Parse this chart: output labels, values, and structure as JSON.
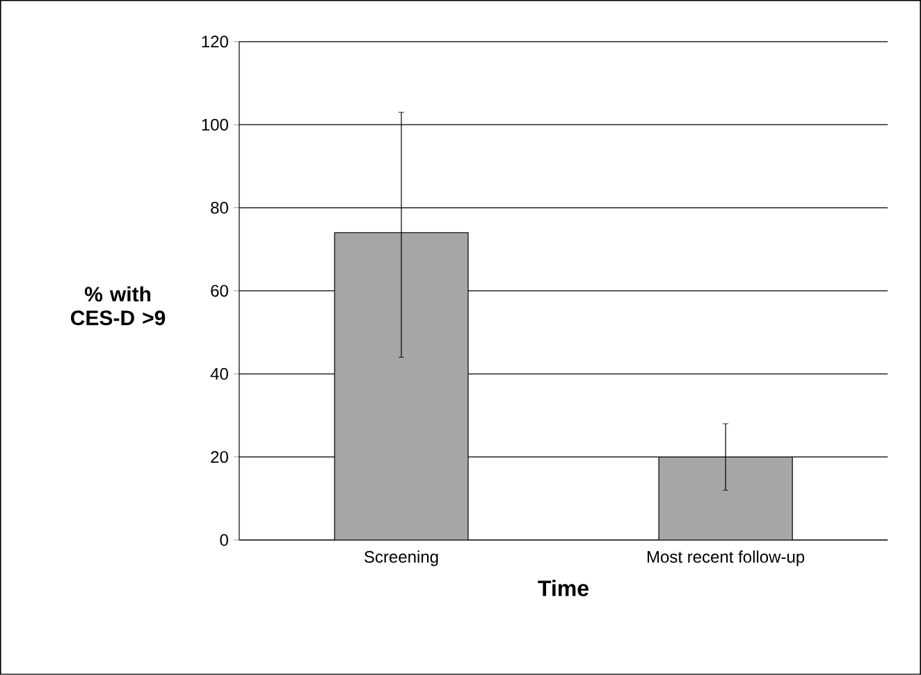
{
  "chart_data": {
    "type": "bar",
    "categories": [
      "Screening",
      "Most recent follow-up"
    ],
    "values": [
      74,
      20
    ],
    "errors": [
      [
        44,
        103
      ],
      [
        12,
        28
      ]
    ],
    "color": "#a6a6a6",
    "xlabel": "Time",
    "ylabel": "% with CES-D >9",
    "ylim": [
      0,
      120
    ],
    "yticks": [
      0,
      20,
      40,
      60,
      80,
      100,
      120
    ],
    "grid": "y"
  }
}
